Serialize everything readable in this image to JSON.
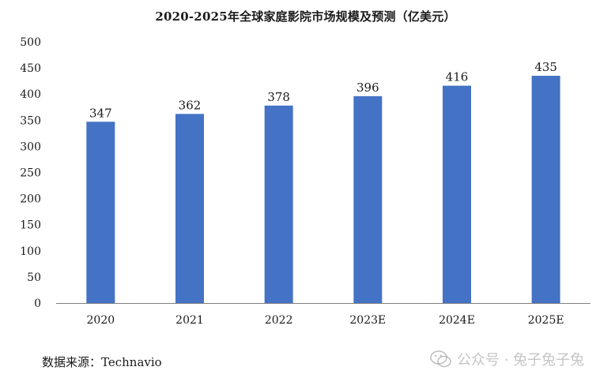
{
  "title": "2020-2025年全球家庭影院市场规模及预测（亿美元）",
  "source_text": "数据来源：Technavio",
  "watermark_text": "公众号 · 兔子兔子兔",
  "colors": {
    "bar": "#4472C4",
    "axis": "#7f7f7f",
    "text": "#1a1a1a"
  },
  "chart_data": {
    "type": "bar",
    "title": "2020-2025年全球家庭影院市场规模及预测（亿美元）",
    "categories": [
      "2020",
      "2021",
      "2022",
      "2023E",
      "2024E",
      "2025E"
    ],
    "values": [
      347,
      362,
      378,
      396,
      416,
      435
    ],
    "data_labels": [
      "347",
      "362",
      "378",
      "396",
      "416",
      "435"
    ],
    "ylim": [
      0,
      500
    ],
    "yticks": [
      0,
      50,
      100,
      150,
      200,
      250,
      300,
      350,
      400,
      450,
      500
    ],
    "ytick_labels": [
      "0",
      "50",
      "100",
      "150",
      "200",
      "250",
      "300",
      "350",
      "400",
      "450",
      "500"
    ],
    "xlabel": "",
    "ylabel": "",
    "grid": false,
    "legend": "none"
  }
}
